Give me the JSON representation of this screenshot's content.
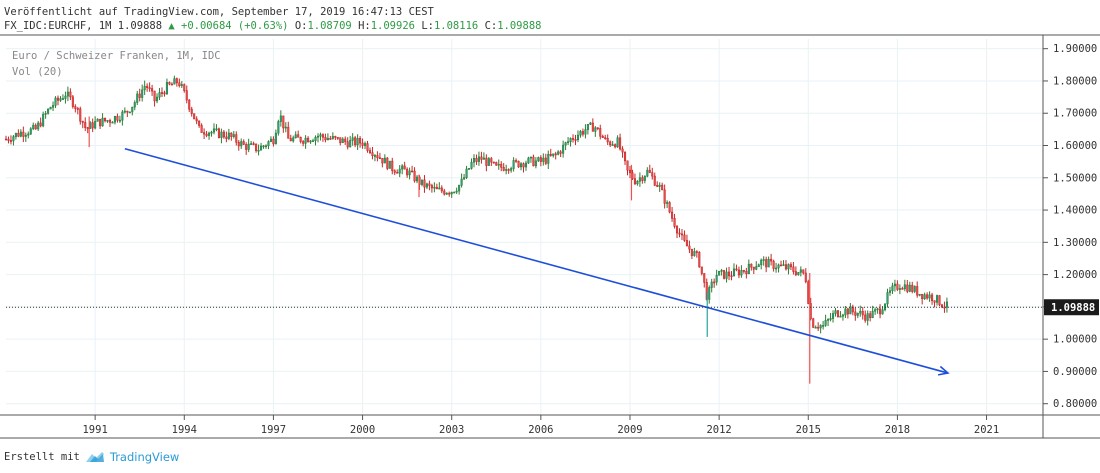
{
  "header": {
    "published": "Veröffentlicht auf TradingView.com, September 17, 2019 16:47:13 CEST",
    "symbol": "FX_IDC:EURCHF, 1M 1.09888",
    "change": "▲ +0.00684 (+0.63%)",
    "ohlc": {
      "o_label": "O:",
      "o_value": "1.08709",
      "h_label": "H:",
      "h_value": "1.09926",
      "l_label": "L:",
      "l_value": "1.08116",
      "c_label": "C:",
      "c_value": "1.09888"
    }
  },
  "legend": {
    "series_title": "Euro / Schweizer Franken, 1M, IDC",
    "volume_title": "Vol (20)"
  },
  "footer": {
    "created_with": "Erstellt mit",
    "brand": "TradingView",
    "brand_icon": "tradingview-logo-icon"
  },
  "colors": {
    "up": "#26a69a",
    "down": "#ef5350",
    "wick_up": "#2e7d32",
    "wick_down": "#c62828",
    "trendline": "#1e4fd8",
    "grid": "#e9f2f6",
    "price_label_bg": "#1b1b1b",
    "price_label_text": "#ffffff"
  },
  "chart_data": {
    "type": "candlestick",
    "title": "Euro / Schweizer Franken, 1M, IDC",
    "interval": "1M",
    "x_ticks": [
      "1991",
      "1994",
      "1997",
      "2000",
      "2003",
      "2006",
      "2009",
      "2012",
      "2015",
      "2018",
      "2021"
    ],
    "y_ticks": [
      "0.80000",
      "0.90000",
      "1.00000",
      "1.10000",
      "1.20000",
      "1.30000",
      "1.40000",
      "1.50000",
      "1.60000",
      "1.70000",
      "1.80000",
      "1.90000"
    ],
    "y_range": [
      0.765,
      1.93
    ],
    "x_range": [
      1988.0,
      2022.9
    ],
    "last_price": 1.09888,
    "last_price_label": "1.09888",
    "grid": true,
    "trendline": {
      "start": [
        1992.0,
        1.59
      ],
      "end": [
        2019.7,
        0.895
      ],
      "arrow": true
    },
    "anchor_points": [
      [
        1988.0,
        1.62
      ],
      [
        1988.5,
        1.64
      ],
      [
        1989.0,
        1.65
      ],
      [
        1989.5,
        1.72
      ],
      [
        1990.0,
        1.76
      ],
      [
        1990.3,
        1.73
      ],
      [
        1990.7,
        1.65
      ],
      [
        1991.0,
        1.67
      ],
      [
        1991.5,
        1.68
      ],
      [
        1992.0,
        1.7
      ],
      [
        1992.3,
        1.73
      ],
      [
        1992.7,
        1.79
      ],
      [
        1993.0,
        1.74
      ],
      [
        1993.4,
        1.78
      ],
      [
        1993.8,
        1.8
      ],
      [
        1994.1,
        1.74
      ],
      [
        1994.5,
        1.65
      ],
      [
        1995.0,
        1.64
      ],
      [
        1995.5,
        1.63
      ],
      [
        1996.0,
        1.6
      ],
      [
        1996.5,
        1.59
      ],
      [
        1997.0,
        1.62
      ],
      [
        1997.2,
        1.7
      ],
      [
        1997.5,
        1.62
      ],
      [
        1998.0,
        1.62
      ],
      [
        1998.5,
        1.63
      ],
      [
        1999.0,
        1.62
      ],
      [
        1999.5,
        1.61
      ],
      [
        2000.0,
        1.61
      ],
      [
        2000.5,
        1.57
      ],
      [
        2001.0,
        1.53
      ],
      [
        2001.5,
        1.52
      ],
      [
        2002.0,
        1.48
      ],
      [
        2002.5,
        1.46
      ],
      [
        2003.0,
        1.46
      ],
      [
        2003.3,
        1.48
      ],
      [
        2003.7,
        1.55
      ],
      [
        2004.0,
        1.56
      ],
      [
        2004.5,
        1.53
      ],
      [
        2005.0,
        1.54
      ],
      [
        2005.5,
        1.55
      ],
      [
        2006.0,
        1.55
      ],
      [
        2006.5,
        1.57
      ],
      [
        2007.0,
        1.62
      ],
      [
        2007.5,
        1.65
      ],
      [
        2007.8,
        1.66
      ],
      [
        2008.2,
        1.61
      ],
      [
        2008.6,
        1.61
      ],
      [
        2008.9,
        1.52
      ],
      [
        2009.2,
        1.49
      ],
      [
        2009.6,
        1.52
      ],
      [
        2010.0,
        1.47
      ],
      [
        2010.4,
        1.38
      ],
      [
        2010.8,
        1.3
      ],
      [
        2011.3,
        1.25
      ],
      [
        2011.6,
        1.13
      ],
      [
        2011.9,
        1.2
      ],
      [
        2012.3,
        1.2
      ],
      [
        2012.7,
        1.21
      ],
      [
        2013.0,
        1.22
      ],
      [
        2013.4,
        1.24
      ],
      [
        2013.8,
        1.23
      ],
      [
        2014.3,
        1.22
      ],
      [
        2014.9,
        1.2
      ],
      [
        2015.1,
        1.05
      ],
      [
        2015.5,
        1.04
      ],
      [
        2015.9,
        1.08
      ],
      [
        2016.3,
        1.09
      ],
      [
        2016.7,
        1.08
      ],
      [
        2017.0,
        1.07
      ],
      [
        2017.4,
        1.09
      ],
      [
        2017.8,
        1.15
      ],
      [
        2018.1,
        1.17
      ],
      [
        2018.4,
        1.16
      ],
      [
        2018.8,
        1.14
      ],
      [
        2019.2,
        1.13
      ],
      [
        2019.5,
        1.11
      ],
      [
        2019.7,
        1.0989
      ]
    ],
    "spikes": [
      {
        "x": 2011.6,
        "low": 1.007,
        "high": 1.145,
        "direction": "up"
      },
      {
        "x": 2015.05,
        "low": 0.862,
        "high": 1.205,
        "direction": "down"
      },
      {
        "x": 2009.05,
        "low": 1.43,
        "high": 1.54,
        "direction": "down"
      },
      {
        "x": 1990.8,
        "low": 1.595,
        "high": 1.69,
        "direction": "down"
      },
      {
        "x": 2001.9,
        "low": 1.44,
        "high": 1.51,
        "direction": "down"
      }
    ]
  }
}
